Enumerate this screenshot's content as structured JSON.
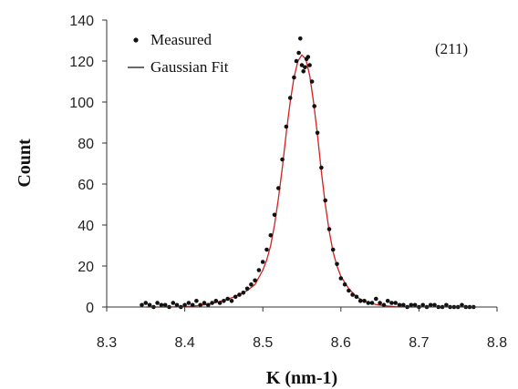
{
  "chart_data": {
    "type": "scatter",
    "xlabel": "K (nm-1)",
    "ylabel": "Count",
    "annotation": "(211)",
    "xlim": [
      8.3,
      8.8
    ],
    "ylim": [
      0,
      140
    ],
    "x_ticks": [
      "8.3",
      "8.4",
      "8.5",
      "8.6",
      "8.7",
      "8.8"
    ],
    "y_ticks": [
      "0",
      "20",
      "40",
      "60",
      "80",
      "100",
      "120",
      "140"
    ],
    "grid": false,
    "legend_position": "top-left",
    "colors": {
      "measured": "#111111",
      "fit": "#d42020",
      "axis": "#333333"
    },
    "series": [
      {
        "name": "Measured",
        "kind": "scatter",
        "x": [
          8.345,
          8.35,
          8.355,
          8.36,
          8.365,
          8.37,
          8.375,
          8.38,
          8.385,
          8.39,
          8.395,
          8.4,
          8.405,
          8.41,
          8.415,
          8.42,
          8.425,
          8.43,
          8.435,
          8.44,
          8.445,
          8.45,
          8.455,
          8.46,
          8.465,
          8.47,
          8.475,
          8.48,
          8.485,
          8.49,
          8.495,
          8.5,
          8.505,
          8.51,
          8.515,
          8.52,
          8.525,
          8.53,
          8.535,
          8.54,
          8.543,
          8.546,
          8.548,
          8.55,
          8.552,
          8.554,
          8.556,
          8.558,
          8.56,
          8.563,
          8.566,
          8.57,
          8.575,
          8.58,
          8.585,
          8.59,
          8.595,
          8.6,
          8.605,
          8.61,
          8.615,
          8.62,
          8.625,
          8.63,
          8.635,
          8.64,
          8.645,
          8.65,
          8.655,
          8.66,
          8.665,
          8.67,
          8.675,
          8.68,
          8.685,
          8.69,
          8.695,
          8.7,
          8.705,
          8.71,
          8.715,
          8.72,
          8.725,
          8.73,
          8.735,
          8.74,
          8.745,
          8.75,
          8.755,
          8.76,
          8.765,
          8.77
        ],
        "y": [
          1,
          2,
          1,
          0,
          2,
          1,
          1,
          0,
          2,
          1,
          0,
          1,
          2,
          1,
          3,
          1,
          2,
          1,
          2,
          3,
          2,
          3,
          4,
          3,
          5,
          6,
          7,
          9,
          11,
          13,
          18,
          22,
          28,
          35,
          45,
          58,
          72,
          88,
          102,
          112,
          120,
          124,
          131,
          118,
          115,
          117,
          121,
          122,
          118,
          110,
          98,
          85,
          68,
          52,
          38,
          28,
          21,
          14,
          11,
          8,
          6,
          5,
          3,
          3,
          2,
          2,
          4,
          2,
          1,
          3,
          2,
          2,
          1,
          1,
          0,
          1,
          1,
          0,
          1,
          0,
          1,
          1,
          0,
          0,
          1,
          0,
          0,
          0,
          1,
          0,
          0,
          0
        ]
      },
      {
        "name": "Gaussian Fit",
        "kind": "line",
        "x": [
          8.35,
          8.36,
          8.37,
          8.38,
          8.39,
          8.4,
          8.41,
          8.42,
          8.43,
          8.44,
          8.45,
          8.46,
          8.47,
          8.48,
          8.49,
          8.5,
          8.505,
          8.51,
          8.515,
          8.52,
          8.525,
          8.53,
          8.535,
          8.54,
          8.545,
          8.55,
          8.555,
          8.56,
          8.565,
          8.57,
          8.575,
          8.58,
          8.585,
          8.59,
          8.595,
          8.6,
          8.61,
          8.62,
          8.63,
          8.64,
          8.65,
          8.66,
          8.67,
          8.68,
          8.69,
          8.7
        ],
        "y": [
          0,
          0,
          0,
          0,
          0.1,
          0.2,
          0.4,
          0.8,
          1.4,
          2.2,
          3.2,
          4.5,
          6,
          8,
          11,
          18,
          23,
          30,
          40,
          53,
          68,
          85,
          100,
          112,
          120,
          123,
          121,
          113,
          100,
          84,
          66,
          50,
          37,
          27,
          20,
          15,
          9,
          5,
          2.8,
          1.6,
          0.9,
          0.5,
          0.2,
          0.1,
          0,
          0
        ]
      }
    ]
  }
}
